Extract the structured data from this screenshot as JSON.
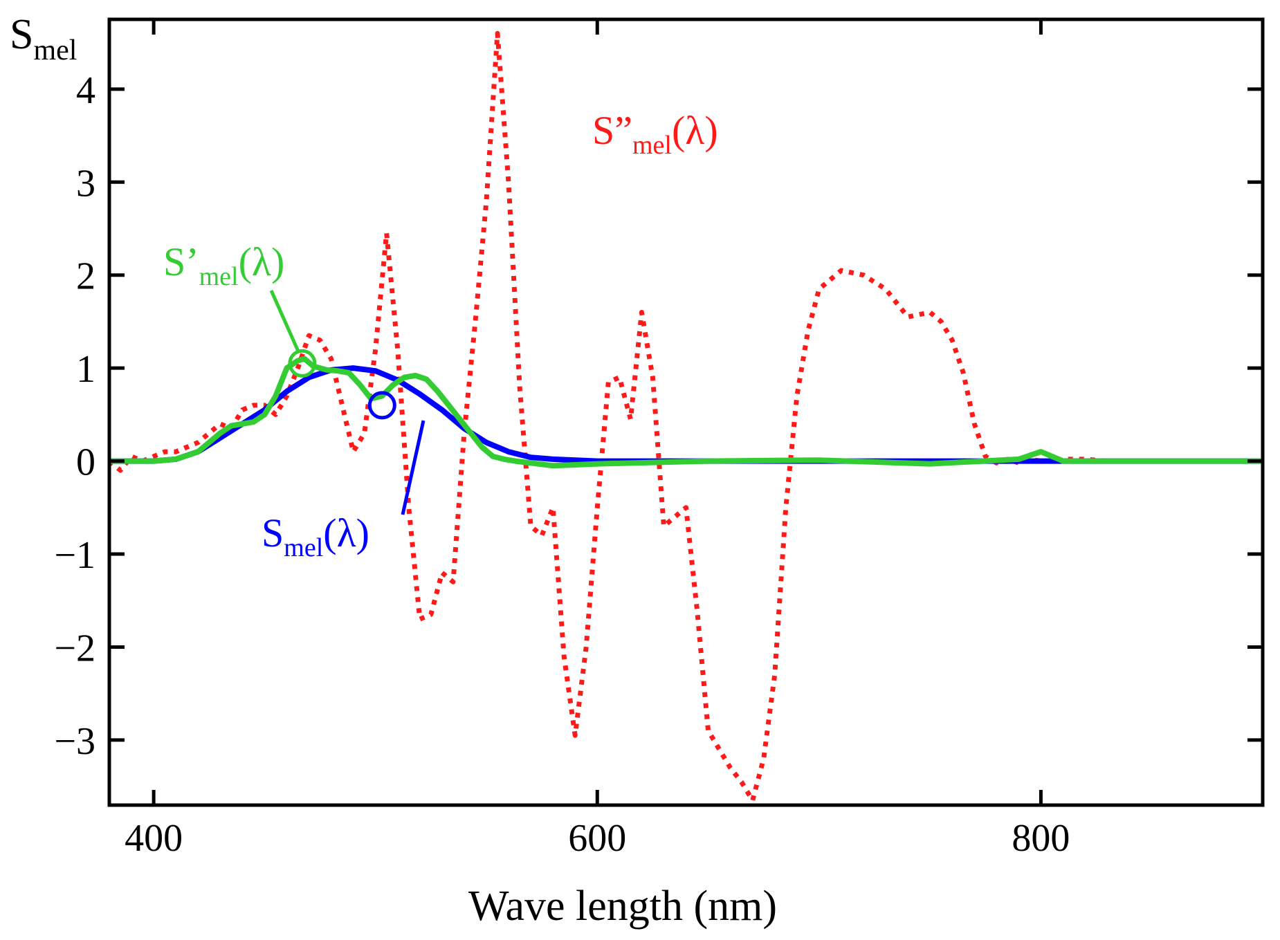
{
  "chart_data": {
    "type": "line",
    "title": "",
    "xlabel": "Wave length (nm)",
    "ylabel_main": "S",
    "ylabel_sub": "mel",
    "xlim": [
      380,
      900
    ],
    "ylim": [
      -3.7,
      4.75
    ],
    "xticks": [
      400,
      600,
      800
    ],
    "xtick_labels": [
      "400",
      "600",
      "800"
    ],
    "yticks": [
      -3,
      -2,
      -1,
      0,
      1,
      2,
      3,
      4
    ],
    "ytick_labels": [
      "−3",
      "−2",
      "−1",
      "0",
      "1",
      "2",
      "3",
      "4"
    ],
    "grid": false,
    "series": [
      {
        "name": "S_mel(λ)",
        "label_main": "S",
        "label_sub": "mel",
        "label_tail": "(λ)",
        "color": "#0000ff",
        "style": "solid",
        "x": [
          380,
          400,
          410,
          420,
          430,
          440,
          450,
          460,
          470,
          480,
          490,
          500,
          510,
          520,
          530,
          540,
          550,
          560,
          570,
          580,
          590,
          600,
          650,
          700,
          750,
          800,
          810,
          820,
          900
        ],
        "y": [
          0.0,
          0.0,
          0.02,
          0.1,
          0.25,
          0.4,
          0.55,
          0.75,
          0.9,
          0.98,
          1.0,
          0.97,
          0.87,
          0.72,
          0.55,
          0.35,
          0.2,
          0.1,
          0.04,
          0.02,
          0.01,
          0.0,
          0.0,
          0.0,
          0.0,
          0.0,
          0.0,
          0.0,
          0.0
        ]
      },
      {
        "name": "S'_mel(λ)",
        "label_main": "S’",
        "label_sub": "mel",
        "label_tail": "(λ)",
        "color": "#33cc33",
        "style": "solid",
        "x": [
          380,
          390,
          400,
          410,
          420,
          430,
          435,
          440,
          445,
          450,
          455,
          460,
          465,
          468,
          472,
          478,
          483,
          488,
          493,
          498,
          503,
          508,
          513,
          518,
          523,
          528,
          533,
          538,
          543,
          548,
          553,
          558,
          563,
          570,
          580,
          590,
          600,
          650,
          700,
          750,
          790,
          800,
          810,
          820,
          900
        ],
        "y": [
          0.0,
          0.0,
          0.0,
          0.02,
          0.1,
          0.3,
          0.38,
          0.4,
          0.42,
          0.5,
          0.7,
          1.0,
          1.08,
          1.1,
          1.02,
          0.98,
          0.97,
          0.95,
          0.82,
          0.67,
          0.7,
          0.82,
          0.9,
          0.92,
          0.88,
          0.75,
          0.6,
          0.45,
          0.3,
          0.15,
          0.05,
          0.02,
          0.0,
          -0.02,
          -0.05,
          -0.04,
          -0.03,
          0.0,
          0.01,
          -0.03,
          0.02,
          0.1,
          0.0,
          0.0,
          0.0
        ]
      },
      {
        "name": "S''_mel(λ)",
        "label_main": "S”",
        "label_sub": "mel",
        "label_tail": "(λ)",
        "color": "#ff1a1a",
        "style": "dotted",
        "x": [
          380,
          385,
          390,
          395,
          400,
          405,
          410,
          415,
          420,
          425,
          430,
          435,
          440,
          445,
          450,
          455,
          460,
          465,
          470,
          475,
          480,
          485,
          490,
          495,
          500,
          505,
          510,
          515,
          520,
          525,
          530,
          535,
          540,
          545,
          550,
          555,
          560,
          565,
          570,
          575,
          580,
          585,
          590,
          595,
          600,
          605,
          610,
          615,
          620,
          625,
          630,
          635,
          640,
          645,
          650,
          655,
          660,
          665,
          670,
          675,
          680,
          685,
          690,
          695,
          700,
          710,
          720,
          730,
          740,
          750,
          755,
          760,
          765,
          770,
          775,
          780,
          785,
          790,
          795,
          800,
          805,
          810,
          820,
          830,
          840,
          850,
          860,
          870,
          880,
          890,
          900
        ],
        "y": [
          0.0,
          -0.1,
          0.05,
          0.0,
          0.05,
          0.1,
          0.1,
          0.15,
          0.2,
          0.3,
          0.4,
          0.35,
          0.55,
          0.6,
          0.6,
          0.5,
          0.7,
          1.0,
          1.35,
          1.3,
          1.1,
          0.6,
          0.1,
          0.3,
          1.2,
          2.45,
          1.2,
          -0.5,
          -1.7,
          -1.65,
          -1.2,
          -1.3,
          0.3,
          1.5,
          2.8,
          4.6,
          3.0,
          0.8,
          -0.7,
          -0.8,
          -0.5,
          -2.1,
          -2.95,
          -2.0,
          -0.5,
          0.85,
          0.9,
          0.45,
          1.6,
          0.9,
          -0.7,
          -0.6,
          -0.5,
          -1.6,
          -2.9,
          -3.1,
          -3.3,
          -3.45,
          -3.65,
          -3.2,
          -2.3,
          -0.5,
          0.7,
          1.4,
          1.85,
          2.05,
          2.0,
          1.85,
          1.55,
          1.6,
          1.5,
          1.3,
          0.95,
          0.4,
          0.05,
          -0.02,
          0.02,
          -0.02,
          0.02,
          0.0,
          0.0,
          0.02,
          0.02,
          0.0,
          0.0,
          0.0,
          0.0,
          0.0,
          0.0,
          0.0,
          0.0
        ]
      }
    ],
    "annotations": [
      {
        "series": 1,
        "x": 467,
        "y": 1.05
      },
      {
        "series": 0,
        "x": 503,
        "y": 0.6
      }
    ]
  }
}
